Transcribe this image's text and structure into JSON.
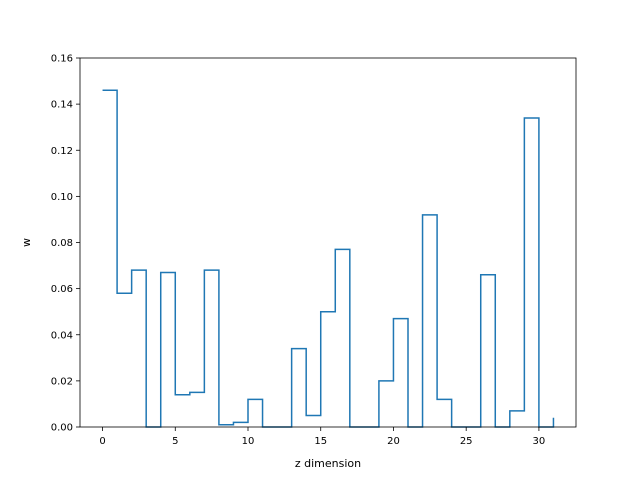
{
  "chart_data": {
    "type": "line",
    "step": "post",
    "xlabel": "z dimension",
    "ylabel": "w",
    "xlim": [
      -1.55,
      32.55
    ],
    "ylim": [
      0,
      0.16
    ],
    "xticks": [
      0,
      5,
      10,
      15,
      20,
      25,
      30
    ],
    "yticks": [
      0.0,
      0.02,
      0.04,
      0.06,
      0.08,
      0.1,
      0.12,
      0.14,
      0.16
    ],
    "ytick_labels": [
      "0.00",
      "0.02",
      "0.04",
      "0.06",
      "0.08",
      "0.10",
      "0.12",
      "0.14",
      "0.16"
    ],
    "grid": false,
    "line_color": "#1f77b4",
    "series": [
      {
        "x": [
          0,
          1,
          2,
          3,
          4,
          5,
          6,
          7,
          8,
          9,
          10,
          11,
          12,
          13,
          14,
          15,
          16,
          17,
          18,
          19,
          20,
          21,
          22,
          23,
          24,
          25,
          26,
          27,
          28,
          29,
          30,
          31
        ],
        "values": [
          0.146,
          0.058,
          0.068,
          0.0,
          0.067,
          0.014,
          0.015,
          0.068,
          0.001,
          0.002,
          0.012,
          0.0,
          0.0,
          0.034,
          0.005,
          0.05,
          0.077,
          0.0,
          0.0,
          0.02,
          0.047,
          0.0,
          0.092,
          0.012,
          0.0,
          0.0,
          0.066,
          0.0,
          0.007,
          0.134,
          0.0,
          0.004
        ]
      }
    ]
  }
}
